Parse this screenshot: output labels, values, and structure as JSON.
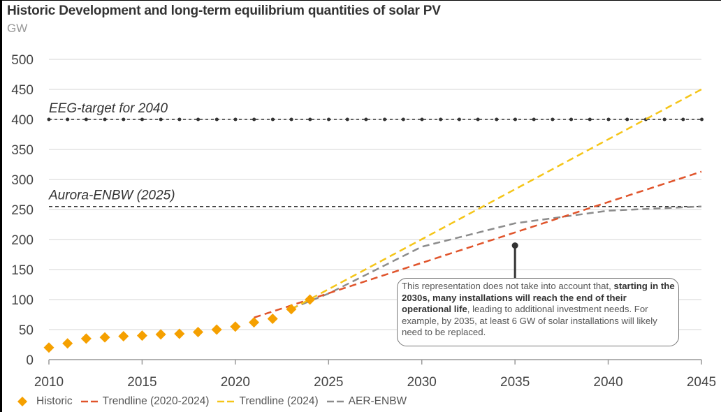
{
  "title": "Historic Development and long-term equilibrium quantities of solar PV",
  "unit": "GW",
  "colors": {
    "historic": "#F5A000",
    "trend_2020_2024": "#E0542B",
    "trend_2024": "#F5C518",
    "aer_enbw": "#8C8C8C",
    "reference": "#333333",
    "grid": "#E3E3E3"
  },
  "chart_data": {
    "type": "line",
    "title": "Historic Development and long-term equilibrium quantities of solar PV",
    "ylabel": "GW",
    "xlabel": "",
    "xlim": [
      2010,
      2045
    ],
    "ylim": [
      0,
      500
    ],
    "xticks": [
      2010,
      2015,
      2020,
      2025,
      2030,
      2035,
      2040,
      2045
    ],
    "yticks": [
      0,
      50,
      100,
      150,
      200,
      250,
      300,
      350,
      400,
      450,
      500
    ],
    "grid": "horizontal",
    "legend_position": "bottom",
    "series": [
      {
        "name": "Historic",
        "style": "diamond-markers",
        "x": [
          2010,
          2011,
          2012,
          2013,
          2014,
          2015,
          2016,
          2017,
          2018,
          2019,
          2020,
          2021,
          2022,
          2023,
          2024
        ],
        "y": [
          20,
          27,
          35,
          37,
          39,
          40,
          42,
          43,
          46,
          50,
          55,
          62,
          68,
          84,
          100
        ]
      },
      {
        "name": "Trendline (2020-2024)",
        "style": "dashed",
        "x": [
          2021,
          2045
        ],
        "y": [
          70,
          313
        ]
      },
      {
        "name": "Trendline (2024)",
        "style": "dashed",
        "x": [
          2023,
          2045
        ],
        "y": [
          84,
          450
        ]
      },
      {
        "name": "AER-ENBW",
        "style": "dashed",
        "x": [
          2023,
          2025,
          2030,
          2035,
          2040,
          2045
        ],
        "y": [
          85,
          110,
          188,
          227,
          248,
          255
        ]
      }
    ],
    "reference_lines": [
      {
        "label": "EEG-target for 2040",
        "y": 400,
        "style": "dash-dot-markers"
      },
      {
        "label": "Aurora-ENBW (2025)",
        "y": 255,
        "style": "dashed"
      }
    ],
    "annotation": {
      "anchor_x": 2035,
      "anchor_y": 190,
      "text_plain_1": "This representation does not take into account that, ",
      "text_bold": "starting in the 2030s, many installations will reach the end of their operational life",
      "text_plain_2": ", leading to additional investment needs. For example, by 2035, at least 6 GW of solar installations will likely need to be replaced."
    }
  },
  "legend": [
    {
      "label": "Historic",
      "key": "historic",
      "symbol": "diamond"
    },
    {
      "label": "Trendline (2020-2024)",
      "key": "trend_2020_2024",
      "symbol": "dash"
    },
    {
      "label": "Trendline (2024)",
      "key": "trend_2024",
      "symbol": "dash"
    },
    {
      "label": "AER-ENBW",
      "key": "aer_enbw",
      "symbol": "dash"
    }
  ]
}
